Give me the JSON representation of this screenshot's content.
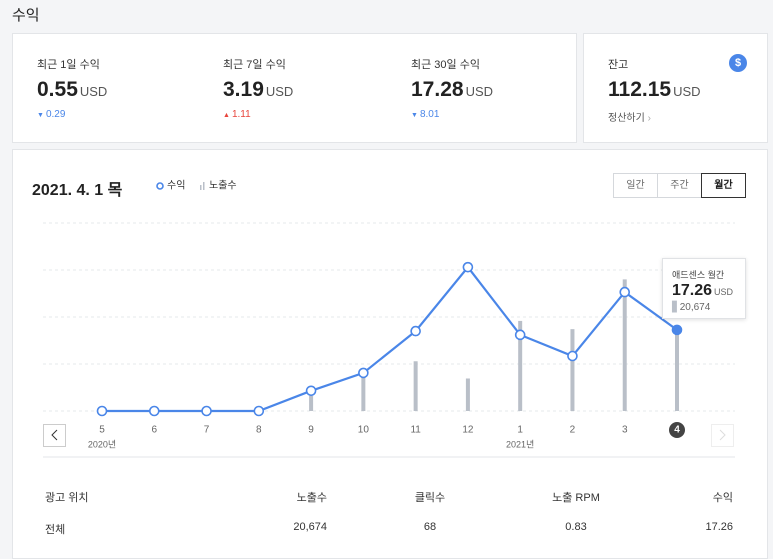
{
  "page_title": "수익",
  "stats": [
    {
      "label": "최근 1일 수익",
      "value": 0.55,
      "unit": "USD",
      "change": 0.29,
      "direction": "down"
    },
    {
      "label": "최근 7일 수익",
      "value": 3.19,
      "unit": "USD",
      "change": 1.11,
      "direction": "up"
    },
    {
      "label": "최근 30일 수익",
      "value": 17.28,
      "unit": "USD",
      "change": 8.01,
      "direction": "down"
    }
  ],
  "balance": {
    "label": "잔고",
    "value": 112.15,
    "unit": "USD",
    "link": "정산하기",
    "icon": "$"
  },
  "chart_date": "2021. 4. 1 목",
  "periods": [
    "일간",
    "주간",
    "월간"
  ],
  "active_period": "월간",
  "chart_data": {
    "type": "line",
    "categories": [
      "5",
      "6",
      "7",
      "8",
      "9",
      "10",
      "11",
      "12",
      "1",
      "2",
      "3",
      "4"
    ],
    "year_labels": [
      "2020년",
      null,
      null,
      null,
      null,
      null,
      null,
      null,
      "2021년",
      null,
      null,
      null
    ],
    "series": [
      {
        "name": "수익",
        "color": "#4a86e8",
        "values": [
          0,
          0,
          0,
          0,
          4.3,
          8.1,
          17.0,
          30.6,
          16.2,
          11.7,
          25.3,
          17.26
        ]
      },
      {
        "name": "노출수",
        "color": "#b9bfc8",
        "axis": "y2",
        "values": [
          0,
          0,
          0,
          0,
          3900,
          9800,
          12700,
          8300,
          23000,
          20900,
          33600,
          20674
        ]
      }
    ],
    "ylim": [
      0,
      40
    ],
    "yticks": [
      0,
      10,
      20,
      30,
      40
    ],
    "y2lim": [
      0,
      48000
    ],
    "grid": true
  },
  "tooltip": {
    "title": "애드센스 월간",
    "unit": "USD"
  },
  "table": {
    "headers": [
      "광고 위치",
      "노출수",
      "클릭수",
      "노출 RPM",
      "수익"
    ],
    "rows": [
      [
        "전체",
        "20,674",
        "68",
        "0.83",
        "17.26"
      ]
    ]
  }
}
